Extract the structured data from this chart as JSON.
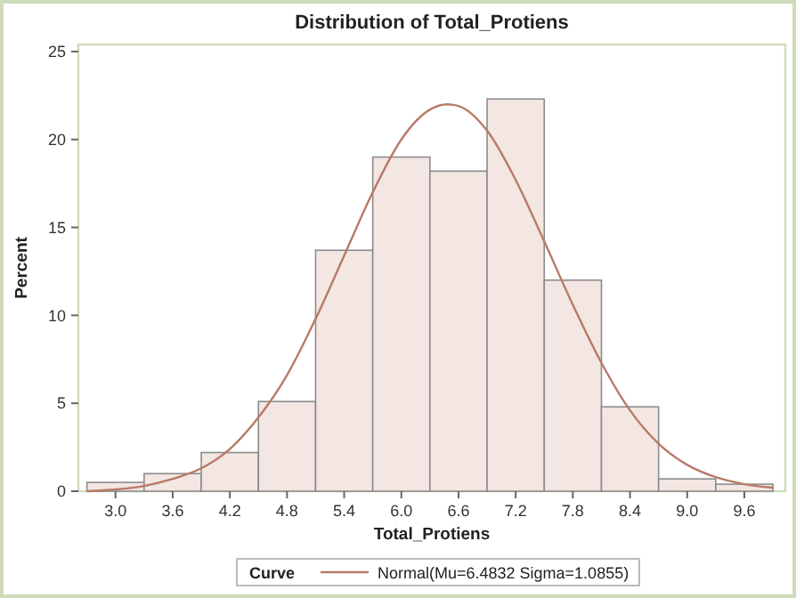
{
  "chart_data": {
    "type": "histogram",
    "title": "Distribution of Total_Protiens",
    "xlabel": "Total_Protiens",
    "ylabel": "Percent",
    "legend_title": "Curve",
    "legend": "bottom",
    "bins": [
      2.7,
      3.3,
      3.9,
      4.5,
      5.1,
      5.7,
      6.3,
      6.9,
      7.5,
      8.1,
      8.7,
      9.3,
      9.9
    ],
    "values": [
      0.5,
      1.0,
      2.2,
      5.1,
      13.7,
      19.0,
      18.2,
      22.3,
      12.0,
      4.8,
      0.7,
      0.4
    ],
    "color": "#f3e6e3",
    "series": [
      {
        "type": "line",
        "name": "Normal(Mu=6.4832 Sigma=1.0855)",
        "color": "#b87a66",
        "x": [
          2.7,
          3.0,
          3.3,
          3.6,
          3.9,
          4.2,
          4.5,
          4.8,
          5.1,
          5.4,
          5.7,
          6.0,
          6.3,
          6.48,
          6.6,
          6.9,
          7.2,
          7.5,
          7.8,
          8.1,
          8.4,
          8.7,
          9.0,
          9.3,
          9.6,
          9.9
        ],
        "values": [
          0.0,
          0.1,
          0.3,
          0.7,
          1.3,
          2.4,
          4.2,
          6.6,
          9.8,
          13.4,
          17.0,
          20.0,
          21.7,
          22.0,
          21.9,
          20.5,
          17.7,
          14.2,
          10.6,
          7.3,
          4.6,
          2.7,
          1.5,
          0.8,
          0.4,
          0.2
        ]
      }
    ],
    "xlim": [
      2.61,
      10.03
    ],
    "ylim": [
      0,
      25.4
    ],
    "xticks": [
      {
        "value": 3,
        "label": "3.0"
      },
      3.6,
      4.2,
      4.8,
      5.4,
      {
        "value": 6,
        "label": "6.0"
      },
      6.6,
      7.2,
      7.8,
      8.4,
      {
        "value": 9,
        "label": "9.0"
      },
      9.6
    ],
    "yticks": [
      0,
      5,
      10,
      15,
      20,
      25
    ]
  }
}
